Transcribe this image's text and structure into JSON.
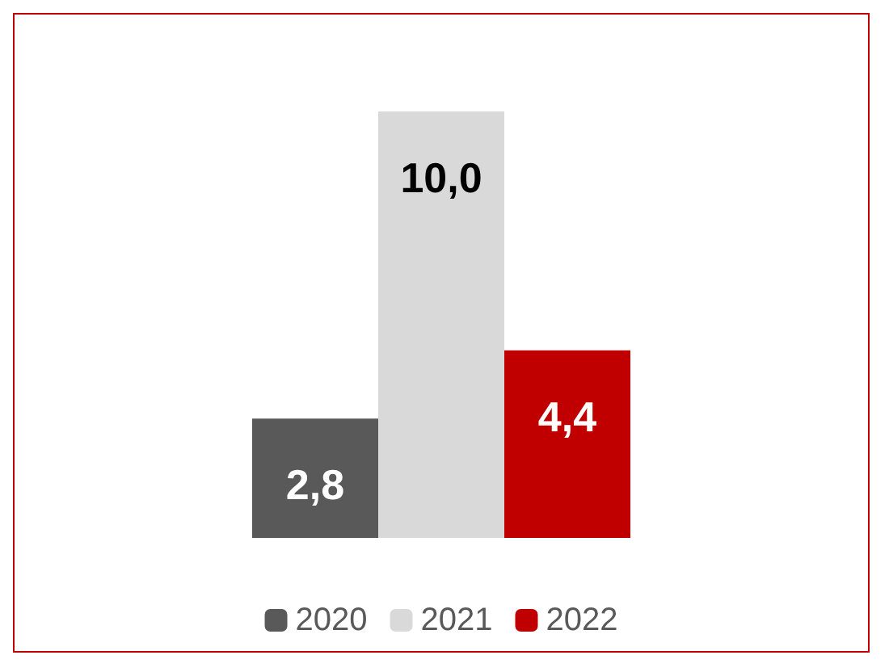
{
  "chart_data": {
    "type": "bar",
    "categories": [
      null
    ],
    "series": [
      {
        "name": "2020",
        "color": "#595959",
        "values": [
          2.8
        ],
        "value_labels": [
          "2,8"
        ]
      },
      {
        "name": "2021",
        "color": "#d9d9d9",
        "values": [
          10.0
        ],
        "value_labels": [
          "10,0"
        ]
      },
      {
        "name": "2022",
        "color": "#c00000",
        "values": [
          4.4
        ],
        "value_labels": [
          "4,4"
        ]
      }
    ],
    "legend": "bottom"
  }
}
